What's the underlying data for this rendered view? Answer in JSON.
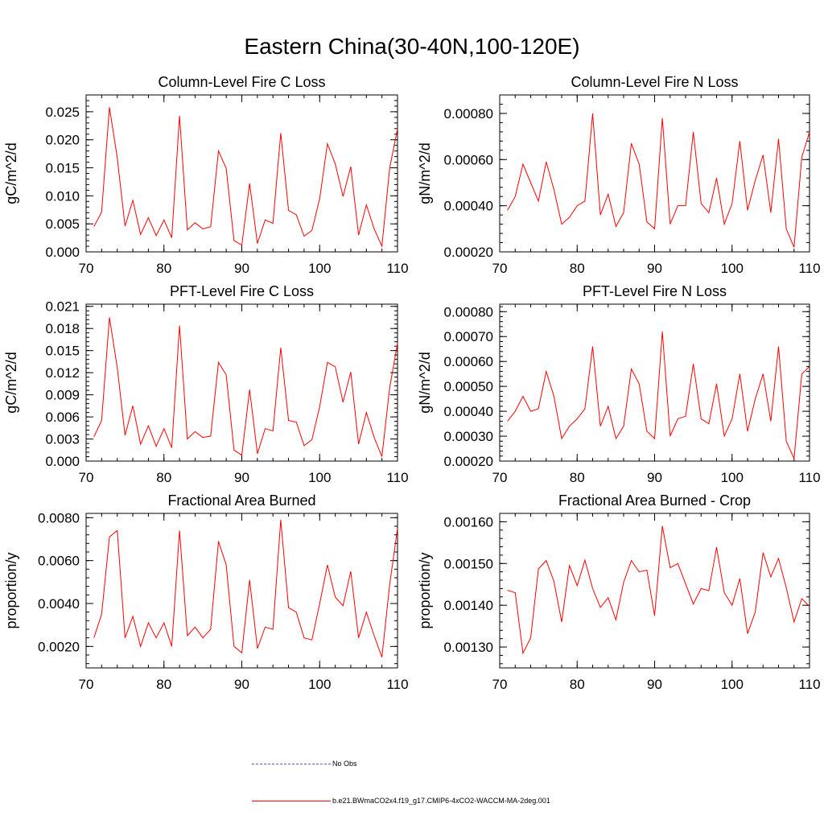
{
  "title": "Eastern China(30-40N,100-120E)",
  "colors": {
    "model": "#ff0000",
    "obs": "#5566cc",
    "axis": "#000000"
  },
  "legend": [
    {
      "label": "No Obs",
      "style": "dashed",
      "color": "#5566cc"
    },
    {
      "label": "b.e21.BWmaCO2x4.f19_g17.CMIP6-4xCO2-WACCM-MA-2deg.001",
      "style": "solid",
      "color": "#ff0000"
    }
  ],
  "chart_data": [
    {
      "type": "line",
      "title": "Column-Level Fire C Loss",
      "ylabel": "gC/m^2/d",
      "xlim": [
        70,
        110
      ],
      "ylim": [
        0,
        0.028
      ],
      "xticks": [
        "70",
        "80",
        "90",
        "100",
        "110"
      ],
      "yticks": [
        "0.000",
        "0.005",
        "0.010",
        "0.015",
        "0.020",
        "0.025"
      ],
      "series": [
        {
          "name": "b.e21.BWmaCO2x4.f19_g17.CMIP6-4xCO2-WACCM-MA-2deg.001",
          "x": [
            71,
            72,
            73,
            74,
            75,
            76,
            77,
            78,
            79,
            80,
            81,
            82,
            83,
            84,
            85,
            86,
            87,
            88,
            89,
            90,
            91,
            92,
            93,
            94,
            95,
            96,
            97,
            98,
            99,
            100,
            101,
            102,
            103,
            104,
            105,
            106,
            107,
            108,
            109,
            110
          ],
          "values": [
            0.0045,
            0.0071,
            0.0258,
            0.0168,
            0.0046,
            0.0092,
            0.0031,
            0.0061,
            0.0029,
            0.0057,
            0.0025,
            0.0243,
            0.0039,
            0.0052,
            0.0041,
            0.0045,
            0.018,
            0.0149,
            0.002,
            0.0012,
            0.0122,
            0.0015,
            0.0057,
            0.0051,
            0.0212,
            0.0074,
            0.0066,
            0.0028,
            0.0038,
            0.0095,
            0.0193,
            0.0157,
            0.0099,
            0.0152,
            0.003,
            0.0084,
            0.0041,
            0.001,
            0.015,
            0.022
          ]
        }
      ]
    },
    {
      "type": "line",
      "title": "Column-Level Fire N Loss",
      "ylabel": "gN/m^2/d",
      "xlim": [
        70,
        110
      ],
      "ylim": [
        0.0002,
        0.00088
      ],
      "xticks": [
        "70",
        "80",
        "90",
        "100",
        "110"
      ],
      "yticks": [
        "0.00020",
        "0.00040",
        "0.00060",
        "0.00080"
      ],
      "series": [
        {
          "name": "b.e21.BWmaCO2x4.f19_g17.CMIP6-4xCO2-WACCM-MA-2deg.001",
          "x": [
            71,
            72,
            73,
            74,
            75,
            76,
            77,
            78,
            79,
            80,
            81,
            82,
            83,
            84,
            85,
            86,
            87,
            88,
            89,
            90,
            91,
            92,
            93,
            94,
            95,
            96,
            97,
            98,
            99,
            100,
            101,
            102,
            103,
            104,
            105,
            106,
            107,
            108,
            109,
            110
          ],
          "values": [
            0.00038,
            0.00044,
            0.00058,
            0.0005,
            0.00042,
            0.00059,
            0.00047,
            0.00032,
            0.00035,
            0.0004,
            0.00042,
            0.0008,
            0.00036,
            0.00045,
            0.00031,
            0.00037,
            0.00067,
            0.00058,
            0.00033,
            0.0003,
            0.00078,
            0.00032,
            0.0004,
            0.0004,
            0.00072,
            0.00041,
            0.00037,
            0.00052,
            0.00032,
            0.00041,
            0.00068,
            0.00038,
            0.00051,
            0.00062,
            0.00037,
            0.00069,
            0.0003,
            0.00022,
            0.00061,
            0.00072
          ]
        }
      ]
    },
    {
      "type": "line",
      "title": "PFT-Level Fire C Loss",
      "ylabel": "gC/m^2/d",
      "xlim": [
        70,
        110
      ],
      "ylim": [
        0,
        0.0213
      ],
      "xticks": [
        "70",
        "80",
        "90",
        "100",
        "110"
      ],
      "yticks": [
        "0.000",
        "0.003",
        "0.006",
        "0.009",
        "0.012",
        "0.015",
        "0.018",
        "0.021"
      ],
      "series": [
        {
          "name": "b.e21.BWmaCO2x4.f19_g17.CMIP6-4xCO2-WACCM-MA-2deg.001",
          "x": [
            71,
            72,
            73,
            74,
            75,
            76,
            77,
            78,
            79,
            80,
            81,
            82,
            83,
            84,
            85,
            86,
            87,
            88,
            89,
            90,
            91,
            92,
            93,
            94,
            95,
            96,
            97,
            98,
            99,
            100,
            101,
            102,
            103,
            104,
            105,
            106,
            107,
            108,
            109,
            110
          ],
          "values": [
            0.0033,
            0.0055,
            0.0195,
            0.0127,
            0.0035,
            0.0075,
            0.0023,
            0.0048,
            0.002,
            0.0044,
            0.0018,
            0.0184,
            0.003,
            0.004,
            0.0032,
            0.0034,
            0.0134,
            0.0117,
            0.0015,
            0.0008,
            0.0097,
            0.001,
            0.0044,
            0.0041,
            0.0154,
            0.0055,
            0.0053,
            0.0021,
            0.0029,
            0.0074,
            0.0134,
            0.0128,
            0.008,
            0.0121,
            0.0023,
            0.0066,
            0.0032,
            0.0006,
            0.01,
            0.016
          ]
        }
      ]
    },
    {
      "type": "line",
      "title": "PFT-Level Fire N Loss",
      "ylabel": "gN/m^2/d",
      "xlim": [
        70,
        110
      ],
      "ylim": [
        0.0002,
        0.00083
      ],
      "xticks": [
        "70",
        "80",
        "90",
        "100",
        "110"
      ],
      "yticks": [
        "0.00020",
        "0.00030",
        "0.00040",
        "0.00050",
        "0.00060",
        "0.00070",
        "0.00080"
      ],
      "series": [
        {
          "name": "b.e21.BWmaCO2x4.f19_g17.CMIP6-4xCO2-WACCM-MA-2deg.001",
          "x": [
            71,
            72,
            73,
            74,
            75,
            76,
            77,
            78,
            79,
            80,
            81,
            82,
            83,
            84,
            85,
            86,
            87,
            88,
            89,
            90,
            91,
            92,
            93,
            94,
            95,
            96,
            97,
            98,
            99,
            100,
            101,
            102,
            103,
            104,
            105,
            106,
            107,
            108,
            109,
            110
          ],
          "values": [
            0.00036,
            0.0004,
            0.00046,
            0.0004,
            0.00041,
            0.00056,
            0.00046,
            0.00029,
            0.00034,
            0.00037,
            0.00041,
            0.00066,
            0.00034,
            0.00042,
            0.00029,
            0.00034,
            0.00057,
            0.00051,
            0.00032,
            0.00029,
            0.00072,
            0.0003,
            0.00037,
            0.00038,
            0.00059,
            0.00037,
            0.00035,
            0.00051,
            0.0003,
            0.00037,
            0.00055,
            0.00032,
            0.00045,
            0.00055,
            0.00036,
            0.00066,
            0.00028,
            0.00021,
            0.00055,
            0.00058
          ]
        }
      ]
    },
    {
      "type": "line",
      "title": "Fractional Area Burned",
      "ylabel": "proportion/y",
      "xlim": [
        70,
        110
      ],
      "ylim": [
        0.001,
        0.0082
      ],
      "xticks": [
        "70",
        "80",
        "90",
        "100",
        "110"
      ],
      "yticks": [
        "0.0020",
        "0.0040",
        "0.0060",
        "0.0080"
      ],
      "series": [
        {
          "name": "b.e21.BWmaCO2x4.f19_g17.CMIP6-4xCO2-WACCM-MA-2deg.001",
          "x": [
            71,
            72,
            73,
            74,
            75,
            76,
            77,
            78,
            79,
            80,
            81,
            82,
            83,
            84,
            85,
            86,
            87,
            88,
            89,
            90,
            91,
            92,
            93,
            94,
            95,
            96,
            97,
            98,
            99,
            100,
            101,
            102,
            103,
            104,
            105,
            106,
            107,
            108,
            109,
            110
          ],
          "values": [
            0.0024,
            0.0035,
            0.0071,
            0.0074,
            0.0024,
            0.0034,
            0.002,
            0.0031,
            0.0024,
            0.0031,
            0.002,
            0.0074,
            0.0025,
            0.0029,
            0.0024,
            0.0028,
            0.0069,
            0.0058,
            0.002,
            0.0017,
            0.0051,
            0.0019,
            0.0029,
            0.0028,
            0.0079,
            0.0038,
            0.0036,
            0.0024,
            0.0023,
            0.004,
            0.0058,
            0.0043,
            0.0039,
            0.0055,
            0.0024,
            0.0036,
            0.0025,
            0.0015,
            0.0049,
            0.0075
          ]
        }
      ]
    },
    {
      "type": "line",
      "title": "Fractional Area Burned - Crop",
      "ylabel": "proportion/y",
      "xlim": [
        70,
        110
      ],
      "ylim": [
        0.00125,
        0.00162
      ],
      "xticks": [
        "70",
        "80",
        "90",
        "100",
        "110"
      ],
      "yticks": [
        "0.00130",
        "0.00140",
        "0.00150",
        "0.00160"
      ],
      "series": [
        {
          "name": "b.e21.BWmaCO2x4.f19_g17.CMIP6-4xCO2-WACCM-MA-2deg.001",
          "x": [
            71,
            72,
            73,
            74,
            75,
            76,
            77,
            78,
            79,
            80,
            81,
            82,
            83,
            84,
            85,
            86,
            87,
            88,
            89,
            90,
            91,
            92,
            93,
            94,
            95,
            96,
            97,
            98,
            99,
            100,
            101,
            102,
            103,
            104,
            105,
            106,
            107,
            108,
            109,
            110
          ],
          "values": [
            0.001436,
            0.00143,
            0.001285,
            0.001322,
            0.001487,
            0.001507,
            0.001457,
            0.00136,
            0.001495,
            0.001447,
            0.001508,
            0.00144,
            0.001395,
            0.001418,
            0.001365,
            0.001455,
            0.001507,
            0.00148,
            0.001484,
            0.001375,
            0.00159,
            0.00149,
            0.0015,
            0.001451,
            0.001403,
            0.00144,
            0.001435,
            0.001539,
            0.00143,
            0.0014,
            0.001464,
            0.001332,
            0.001384,
            0.001526,
            0.001468,
            0.001512,
            0.001442,
            0.00136,
            0.001416,
            0.001397
          ]
        }
      ]
    }
  ]
}
